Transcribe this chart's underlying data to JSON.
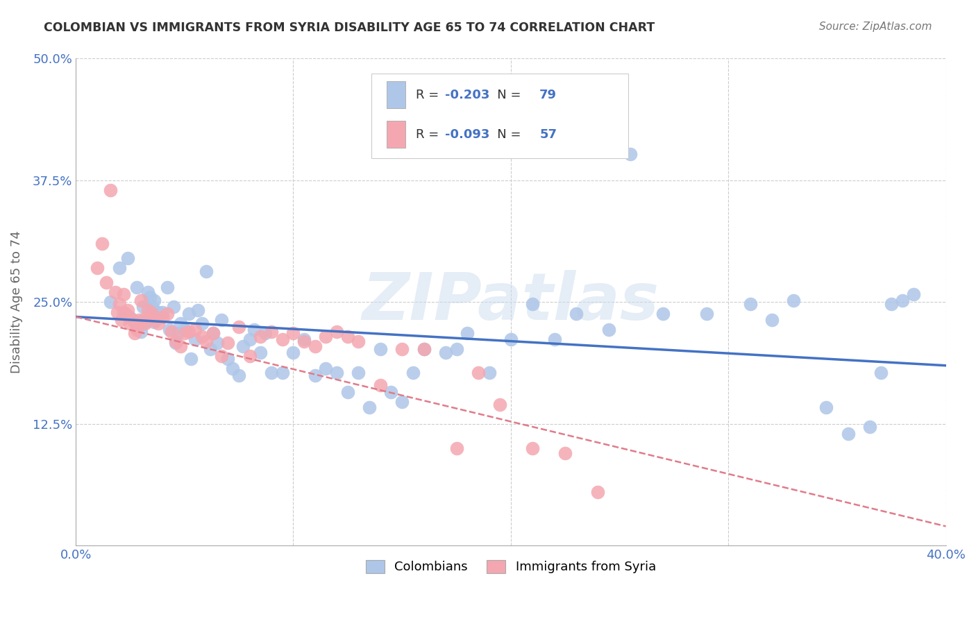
{
  "title": "COLOMBIAN VS IMMIGRANTS FROM SYRIA DISABILITY AGE 65 TO 74 CORRELATION CHART",
  "source": "Source: ZipAtlas.com",
  "ylabel": "Disability Age 65 to 74",
  "xlim": [
    0.0,
    0.4
  ],
  "ylim": [
    0.0,
    0.5
  ],
  "ytick_values": [
    0.0,
    0.125,
    0.25,
    0.375,
    0.5
  ],
  "xtick_values": [
    0.0,
    0.1,
    0.2,
    0.3,
    0.4
  ],
  "ytick_labels": [
    "",
    "12.5%",
    "25.0%",
    "37.5%",
    "50.0%"
  ],
  "xtick_labels": [
    "0.0%",
    "",
    "",
    "",
    "40.0%"
  ],
  "colombian_R": -0.203,
  "colombian_N": 79,
  "syria_R": -0.093,
  "syria_N": 57,
  "colombian_color": "#aec6e8",
  "syria_color": "#f4a7b0",
  "colombian_line_color": "#4472c4",
  "syria_line_color": "#e07b8a",
  "watermark": "ZIPatlas",
  "legend_colombian": "Colombians",
  "legend_syria": "Immigrants from Syria",
  "colombian_x": [
    0.016,
    0.02,
    0.022,
    0.024,
    0.025,
    0.027,
    0.028,
    0.03,
    0.031,
    0.032,
    0.033,
    0.034,
    0.035,
    0.036,
    0.036,
    0.038,
    0.04,
    0.042,
    0.043,
    0.045,
    0.046,
    0.047,
    0.048,
    0.05,
    0.052,
    0.053,
    0.055,
    0.056,
    0.058,
    0.06,
    0.062,
    0.063,
    0.065,
    0.067,
    0.07,
    0.072,
    0.075,
    0.077,
    0.08,
    0.082,
    0.085,
    0.087,
    0.09,
    0.095,
    0.1,
    0.105,
    0.11,
    0.115,
    0.12,
    0.125,
    0.13,
    0.135,
    0.14,
    0.145,
    0.15,
    0.155,
    0.16,
    0.17,
    0.175,
    0.18,
    0.19,
    0.2,
    0.21,
    0.22,
    0.23,
    0.245,
    0.255,
    0.27,
    0.29,
    0.31,
    0.32,
    0.33,
    0.345,
    0.355,
    0.365,
    0.37,
    0.375,
    0.38,
    0.385
  ],
  "colombian_y": [
    0.25,
    0.285,
    0.24,
    0.295,
    0.235,
    0.23,
    0.265,
    0.22,
    0.245,
    0.23,
    0.26,
    0.255,
    0.245,
    0.23,
    0.252,
    0.24,
    0.24,
    0.265,
    0.222,
    0.245,
    0.208,
    0.218,
    0.228,
    0.222,
    0.238,
    0.192,
    0.212,
    0.242,
    0.228,
    0.282,
    0.202,
    0.218,
    0.208,
    0.232,
    0.192,
    0.182,
    0.175,
    0.205,
    0.212,
    0.222,
    0.198,
    0.218,
    0.178,
    0.178,
    0.198,
    0.212,
    0.175,
    0.182,
    0.178,
    0.158,
    0.178,
    0.142,
    0.202,
    0.158,
    0.148,
    0.178,
    0.202,
    0.198,
    0.202,
    0.218,
    0.178,
    0.212,
    0.248,
    0.212,
    0.238,
    0.222,
    0.402,
    0.238,
    0.238,
    0.248,
    0.232,
    0.252,
    0.142,
    0.115,
    0.122,
    0.178,
    0.248,
    0.252,
    0.258
  ],
  "syria_x": [
    0.01,
    0.012,
    0.014,
    0.016,
    0.018,
    0.019,
    0.02,
    0.021,
    0.022,
    0.023,
    0.024,
    0.025,
    0.026,
    0.027,
    0.028,
    0.029,
    0.03,
    0.031,
    0.032,
    0.033,
    0.035,
    0.036,
    0.038,
    0.04,
    0.042,
    0.044,
    0.046,
    0.048,
    0.05,
    0.052,
    0.055,
    0.058,
    0.06,
    0.063,
    0.067,
    0.07,
    0.075,
    0.08,
    0.085,
    0.09,
    0.095,
    0.1,
    0.105,
    0.11,
    0.115,
    0.12,
    0.125,
    0.13,
    0.14,
    0.15,
    0.16,
    0.175,
    0.185,
    0.195,
    0.21,
    0.225,
    0.24
  ],
  "syria_y": [
    0.285,
    0.31,
    0.27,
    0.365,
    0.26,
    0.24,
    0.248,
    0.232,
    0.258,
    0.238,
    0.242,
    0.228,
    0.232,
    0.218,
    0.222,
    0.232,
    0.252,
    0.232,
    0.228,
    0.242,
    0.238,
    0.232,
    0.228,
    0.235,
    0.238,
    0.22,
    0.21,
    0.205,
    0.218,
    0.22,
    0.222,
    0.215,
    0.21,
    0.218,
    0.195,
    0.208,
    0.225,
    0.195,
    0.215,
    0.22,
    0.212,
    0.218,
    0.21,
    0.205,
    0.215,
    0.22,
    0.215,
    0.21,
    0.165,
    0.202,
    0.202,
    0.1,
    0.178,
    0.145,
    0.1,
    0.095,
    0.055
  ]
}
